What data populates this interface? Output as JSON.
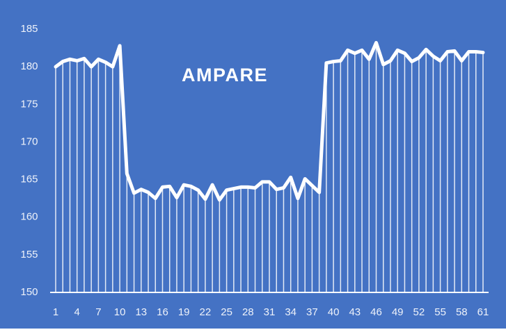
{
  "chart_data": {
    "type": "line",
    "title": "AMPARE",
    "categories": [
      "1",
      null,
      null,
      "4",
      null,
      null,
      "7",
      null,
      null,
      "10",
      null,
      null,
      "13",
      null,
      null,
      "16",
      null,
      null,
      "19",
      null,
      null,
      "22",
      null,
      null,
      "25",
      null,
      null,
      "28",
      null,
      null,
      "31",
      null,
      null,
      "34",
      null,
      null,
      "37",
      null,
      null,
      "40",
      null,
      null,
      "43",
      null,
      null,
      "46",
      null,
      null,
      "49",
      null,
      null,
      "52",
      null,
      null,
      "55",
      null,
      null,
      "58",
      null,
      null,
      "61"
    ],
    "values": [
      180,
      180.7,
      181,
      180.8,
      181.1,
      180,
      181,
      180.6,
      180,
      182.8,
      165.8,
      163.2,
      163.7,
      163.3,
      162.5,
      164,
      164.1,
      162.6,
      164.3,
      164.1,
      163.6,
      162.4,
      164.3,
      162.3,
      163.6,
      163.8,
      164,
      164,
      163.9,
      164.7,
      164.7,
      163.7,
      163.9,
      165.3,
      162.5,
      165.1,
      164.2,
      163.3,
      180.5,
      180.7,
      180.8,
      182.2,
      181.8,
      182.2,
      181,
      183.2,
      180.3,
      180.8,
      182.2,
      181.8,
      180.7,
      181.2,
      182.3,
      181.4,
      180.8,
      182,
      182.1,
      180.8,
      182,
      182,
      181.9
    ],
    "color": "#ffffff",
    "background": "#4472c4",
    "drop_lines": true,
    "ylim": [
      150,
      185
    ],
    "yticks": [
      150,
      155,
      160,
      165,
      170,
      175,
      180,
      185
    ],
    "grid": false
  }
}
